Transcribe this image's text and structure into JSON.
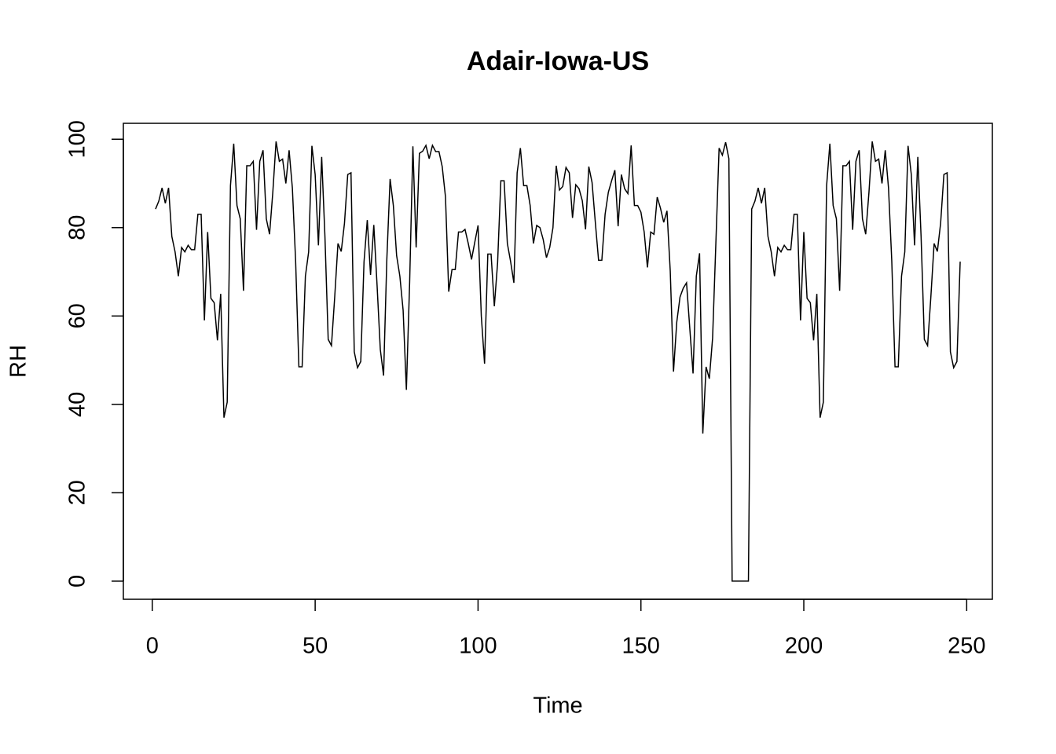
{
  "chart_data": {
    "type": "line",
    "title": "Adair-Iowa-US",
    "x_label": "Time",
    "y_label": "RH",
    "xlim": [
      -8.88,
      257.88
    ],
    "ylim": [
      -4.1,
      103.6
    ],
    "xticks": [
      0,
      50,
      100,
      150,
      200,
      250
    ],
    "yticks": [
      0,
      20,
      40,
      60,
      80,
      100
    ],
    "x": [
      1,
      2,
      3,
      4,
      5,
      6,
      7,
      8,
      9,
      10,
      11,
      12,
      13,
      14,
      15,
      16,
      17,
      18,
      19,
      20,
      21,
      22,
      23,
      24,
      25,
      26,
      27,
      28,
      29,
      30,
      31,
      32,
      33,
      34,
      35,
      36,
      37,
      38,
      39,
      40,
      41,
      42,
      43,
      44,
      45,
      46,
      47,
      48,
      49,
      50,
      51,
      52,
      53,
      54,
      55,
      56,
      57,
      58,
      59,
      60,
      61,
      62,
      63,
      64,
      65,
      66,
      67,
      68,
      69,
      70,
      71,
      72,
      73,
      74,
      75,
      76,
      77,
      78,
      79,
      80,
      81,
      82,
      83,
      84,
      85,
      86,
      87,
      88,
      89,
      90,
      91,
      92,
      93,
      94,
      95,
      96,
      97,
      98,
      99,
      100,
      101,
      102,
      103,
      104,
      105,
      106,
      107,
      108,
      109,
      110,
      111,
      112,
      113,
      114,
      115,
      116,
      117,
      118,
      119,
      120,
      121,
      122,
      123,
      124,
      125,
      126,
      127,
      128,
      129,
      130,
      131,
      132,
      133,
      134,
      135,
      136,
      137,
      138,
      139,
      140,
      141,
      142,
      143,
      144,
      145,
      146,
      147,
      148,
      149,
      150,
      151,
      152,
      153,
      154,
      155,
      156,
      157,
      158,
      159,
      160,
      161,
      162,
      163,
      164,
      165,
      166,
      167,
      168,
      169,
      170,
      171,
      172,
      173,
      174,
      175,
      176,
      177,
      178,
      179,
      180,
      181,
      182,
      183,
      184,
      185,
      186,
      187,
      188,
      189,
      190,
      191,
      192,
      193,
      194,
      195,
      196,
      197,
      198,
      199,
      200,
      201,
      202,
      203,
      204,
      205,
      206,
      207,
      208,
      209,
      210,
      211,
      212,
      213,
      214,
      215,
      216,
      217,
      218,
      219,
      220,
      221,
      222,
      223,
      224,
      225,
      226,
      227,
      228,
      229,
      230,
      231,
      232,
      233,
      234,
      235,
      236,
      237,
      238,
      239,
      240,
      241,
      242,
      243,
      244,
      245,
      246,
      247,
      248
    ],
    "series": [
      {
        "name": "RH",
        "color": "#000000",
        "values": [
          84.2,
          86,
          89,
          85.5,
          89,
          78,
          74.5,
          69,
          75.5,
          74.5,
          76,
          75,
          75,
          83,
          83,
          59,
          79,
          64,
          63,
          54.5,
          65,
          37,
          40.5,
          89.5,
          99,
          85,
          82,
          65.7,
          94,
          94,
          95,
          79.5,
          95,
          97.5,
          82,
          78.5,
          88,
          99.5,
          95,
          95.5,
          90,
          97.5,
          89,
          72.5,
          48.5,
          48.5,
          69,
          74.5,
          98.5,
          92,
          76,
          96,
          78,
          54.7,
          53.3,
          64.3,
          76.4,
          74.6,
          81,
          92,
          92.4,
          51.9,
          48.3,
          49.7,
          72.3,
          81.7,
          69.3,
          80.6,
          67,
          52.4,
          46.5,
          72.8,
          91,
          85,
          73.7,
          69,
          61.3,
          43.3,
          67.5,
          98.4,
          75.5,
          96.8,
          97.3,
          98.6,
          95.6,
          98.6,
          97.2,
          97.2,
          93.8,
          87,
          65.5,
          70.5,
          70.5,
          79,
          79,
          79.6,
          76.4,
          72.8,
          76.7,
          80.5,
          60,
          49.2,
          74,
          74,
          62.2,
          72,
          90.6,
          90.6,
          76.4,
          72.3,
          67.5,
          92.4,
          98,
          89.5,
          89.5,
          85,
          76.4,
          80.5,
          80,
          77.3,
          73.2,
          75.5,
          80,
          94,
          88.5,
          89.3,
          93.6,
          92.4,
          82.2,
          89.7,
          88.8,
          86.1,
          79.6,
          93.8,
          90.2,
          81.2,
          72.6,
          72.6,
          83,
          88,
          90.6,
          93,
          80.3,
          92,
          88.8,
          87.7,
          98.6,
          85,
          85,
          83.5,
          79,
          71,
          79,
          78.5,
          86.9,
          84.4,
          81.2,
          83.8,
          70.2,
          47.4,
          58.6,
          64.3,
          66.3,
          67.5,
          57.2,
          47,
          69,
          74.2,
          33.4,
          48.5,
          45.8,
          55,
          76.4,
          98,
          96.4,
          99.3,
          95.6,
          0,
          0,
          0,
          0,
          0,
          0,
          84.2,
          86,
          89,
          85.5,
          89,
          78,
          74.5,
          69,
          75.5,
          74.5,
          76,
          75,
          75,
          83,
          83,
          59,
          79,
          64,
          63,
          54.5,
          65,
          37,
          40.5,
          89.5,
          99,
          85,
          82,
          65.7,
          94,
          94,
          95,
          79.5,
          95,
          97.5,
          82,
          78.5,
          88,
          99.5,
          95,
          95.5,
          90,
          97.5,
          89,
          72.5,
          48.5,
          48.5,
          69,
          74.5,
          98.5,
          92,
          76,
          96,
          78,
          54.7,
          53.3,
          64.3,
          76.4,
          74.6,
          81,
          92,
          92.4,
          51.9,
          48.3,
          49.7,
          72.3
        ]
      }
    ]
  }
}
